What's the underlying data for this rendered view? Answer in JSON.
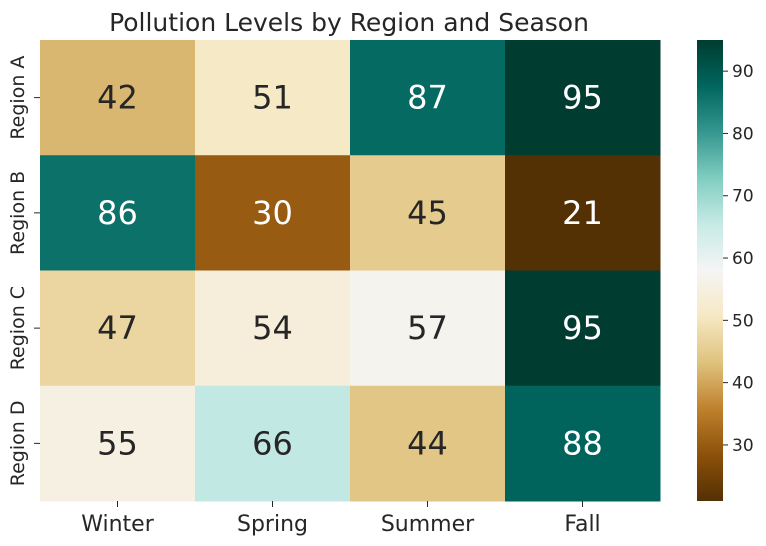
{
  "chart_data": {
    "type": "heatmap",
    "title": "Pollution Levels by Region and Season",
    "xlabel": "",
    "ylabel": "",
    "columns": [
      "Winter",
      "Spring",
      "Summer",
      "Fall"
    ],
    "rows": [
      "Region A",
      "Region B",
      "Region C",
      "Region D"
    ],
    "values": [
      [
        42,
        51,
        87,
        95
      ],
      [
        86,
        30,
        45,
        21
      ],
      [
        47,
        54,
        57,
        95
      ],
      [
        55,
        66,
        44,
        88
      ]
    ],
    "colormap": "BrBG",
    "colorbar": {
      "range": [
        21,
        95
      ],
      "ticks": [
        30,
        40,
        50,
        60,
        70,
        80,
        90
      ]
    },
    "annotations": true
  }
}
